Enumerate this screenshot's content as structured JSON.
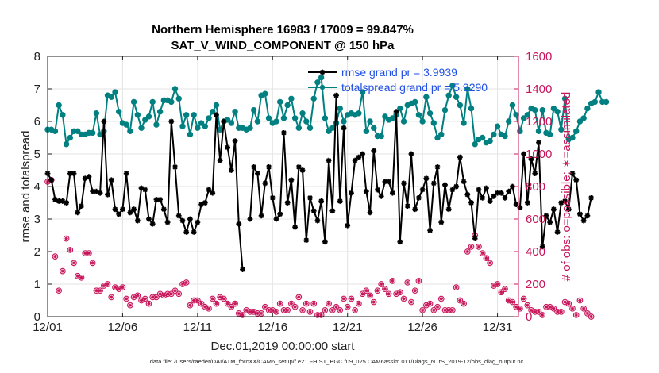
{
  "chart_data": {
    "type": "line",
    "title": "Northern Hemisphere 16983 / 17009 = 99.847%",
    "subtitle": "SAT_V_WIND_COMPONENT @ 150 hPa",
    "xlabel": "Dec.01,2019 00:00:00 start",
    "ylabel": "rmse and totalspread",
    "y2label": "# of obs: o=possible; ∗=assimilated",
    "footer": "data file: /Users/raeder/DAI/ATM_forcXX/CAM6_setup/f.e21.FHIST_BGC.f09_025.CAM6assim.011/Diags_NTrS_2019-12/obs_diag_output.nc",
    "xlim": [
      0,
      31.4
    ],
    "ylim": [
      0,
      8
    ],
    "y2lim": [
      0,
      1600
    ],
    "x_tick_labels": [
      "12/01",
      "12/06",
      "12/11",
      "12/16",
      "12/21",
      "12/26",
      "12/31"
    ],
    "x_tick_values": [
      0,
      5,
      10,
      15,
      20,
      25,
      30
    ],
    "y_tick_values": [
      0,
      1,
      2,
      3,
      4,
      5,
      6,
      7,
      8
    ],
    "y2_tick_values": [
      0,
      200,
      400,
      600,
      800,
      1000,
      1200,
      1400,
      1600
    ],
    "x_step_days": 0.25,
    "colors": {
      "rmse": "#000000",
      "spread": "#008080",
      "obs": "#c8155a",
      "legend_text": "#1f4fe6"
    },
    "legend": [
      {
        "name": "rmse grand pr = 3.9939",
        "color": "#000000",
        "series": "rmse"
      },
      {
        "name": "totalspread grand pr = 5.9290",
        "color": "#008080",
        "series": "spread"
      }
    ],
    "series": [
      {
        "name": "rmse",
        "axis": "left",
        "values": [
          4.4,
          4.2,
          3.6,
          3.55,
          3.55,
          3.5,
          4.4,
          4.4,
          3.2,
          3.4,
          4.25,
          4.3,
          3.85,
          3.85,
          3.8,
          6.0,
          3.75,
          4.2,
          3.3,
          3.15,
          3.3,
          4.4,
          3.2,
          3.3,
          2.95,
          3.95,
          3.9,
          3.0,
          2.85,
          3.6,
          3.6,
          3.3,
          2.9,
          6.0,
          4.6,
          3.1,
          2.95,
          2.6,
          3.0,
          2.6,
          2.9,
          3.45,
          3.5,
          3.9,
          3.8,
          6.2,
          4.8,
          6.0,
          5.2,
          4.5,
          5.4,
          2.85,
          1.45,
          null,
          3.0,
          4.6,
          4.4,
          3.1,
          4.1,
          4.6,
          3.65,
          3.0,
          3.15,
          5.65,
          3.5,
          4.2,
          2.75,
          4.6,
          4.5,
          2.35,
          3.65,
          3.25,
          2.95,
          3.55,
          2.3,
          4.8,
          3.25,
          6.8,
          3.55,
          5.8,
          2.8,
          3.8,
          4.8,
          4.9,
          5.0,
          3.85,
          3.2,
          5.1,
          3.9,
          3.7,
          4.15,
          4.15,
          3.8,
          6.3,
          2.3,
          4.1,
          3.4,
          5.0,
          3.3,
          3.65,
          3.9,
          4.25,
          2.65,
          4.1,
          4.6,
          2.9,
          4.05,
          3.3,
          3.9,
          4.0,
          4.9,
          4.15,
          3.75,
          3.5,
          2.4,
          3.9,
          3.65,
          3.95,
          3.55,
          3.7,
          3.8,
          3.8,
          3.65,
          3.85,
          4.0,
          3.45,
          3.35,
          5.0,
          3.5,
          4.85,
          4.4,
          5.35,
          2.15,
          3.1,
          2.9,
          3.3,
          2.6,
          3.5,
          3.55,
          3.3,
          4.4,
          4.2,
          3.15,
          2.95,
          3.1,
          3.65
        ]
      },
      {
        "name": "spread",
        "axis": "left",
        "values": [
          5.75,
          5.75,
          5.7,
          6.5,
          6.2,
          5.3,
          5.5,
          5.7,
          5.7,
          5.6,
          5.6,
          5.65,
          5.65,
          6.25,
          5.6,
          5.7,
          6.8,
          6.75,
          6.9,
          6.3,
          5.95,
          5.9,
          5.7,
          6.6,
          6.2,
          5.8,
          6.05,
          6.15,
          6.6,
          5.9,
          6.3,
          6.65,
          6.65,
          6.6,
          7.0,
          6.7,
          5.85,
          6.2,
          5.6,
          6.2,
          5.8,
          5.95,
          5.85,
          6.1,
          6.3,
          6.5,
          5.75,
          6.0,
          6.05,
          5.95,
          6.3,
          5.8,
          5.8,
          5.75,
          5.8,
          6.35,
          6.0,
          6.8,
          6.85,
          6.1,
          5.95,
          6.0,
          6.6,
          6.1,
          6.5,
          6.7,
          6.1,
          5.8,
          6.25,
          6.0,
          5.8,
          6.7,
          7.2,
          7.35,
          6.1,
          5.7,
          5.8,
          5.95,
          6.4,
          6.0,
          6.2,
          6.25,
          6.2,
          6.25,
          6.9,
          5.7,
          6.0,
          5.8,
          5.55,
          5.55,
          6.15,
          6.05,
          6.1,
          6.2,
          6.4,
          6.0,
          6.5,
          6.55,
          6.6,
          6.2,
          6.0,
          6.75,
          6.25,
          5.95,
          5.5,
          5.6,
          6.35,
          6.8,
          7.1,
          6.75,
          6.5,
          5.95,
          7.0,
          6.4,
          5.3,
          5.45,
          5.5,
          5.35,
          5.4,
          5.6,
          5.85,
          5.6,
          5.55,
          6.0,
          6.5,
          6.2,
          5.7,
          6.1,
          6.2,
          6.4,
          6.35,
          5.7,
          6.35,
          5.65,
          5.6,
          6.4,
          6.3,
          5.75,
          6.7,
          5.45,
          5.5,
          5.7,
          6.0,
          6.1,
          6.4,
          6.55,
          6.6,
          6.9,
          6.6,
          6.6
        ]
      },
      {
        "name": "obs",
        "axis": "right",
        "values": [
          830,
          840,
          370,
          160,
          280,
          480,
          410,
          330,
          250,
          240,
          390,
          390,
          330,
          160,
          160,
          190,
          200,
          120,
          180,
          170,
          180,
          110,
          70,
          120,
          130,
          100,
          110,
          80,
          120,
          120,
          140,
          130,
          140,
          140,
          160,
          140,
          200,
          210,
          70,
          100,
          100,
          80,
          60,
          50,
          110,
          80,
          120,
          110,
          80,
          60,
          80,
          20,
          10,
          40,
          30,
          30,
          20,
          20,
          60,
          40,
          40,
          30,
          80,
          40,
          40,
          80,
          60,
          120,
          40,
          80,
          30,
          80,
          10,
          10,
          40,
          80,
          40,
          60,
          40,
          110,
          60,
          110,
          40,
          80,
          140,
          160,
          130,
          90,
          160,
          200,
          170,
          140,
          220,
          140,
          150,
          110,
          210,
          90,
          160,
          220,
          40,
          70,
          80,
          40,
          60,
          110,
          40,
          40,
          40,
          180,
          100,
          80,
          400,
          430,
          500,
          430,
          390,
          360,
          330,
          190,
          200,
          150,
          170,
          100,
          90,
          60,
          50,
          110,
          70,
          40,
          30,
          30,
          10,
          60,
          60,
          50,
          30,
          30,
          90,
          80,
          50,
          10,
          100,
          50,
          20,
          0
        ]
      }
    ]
  }
}
